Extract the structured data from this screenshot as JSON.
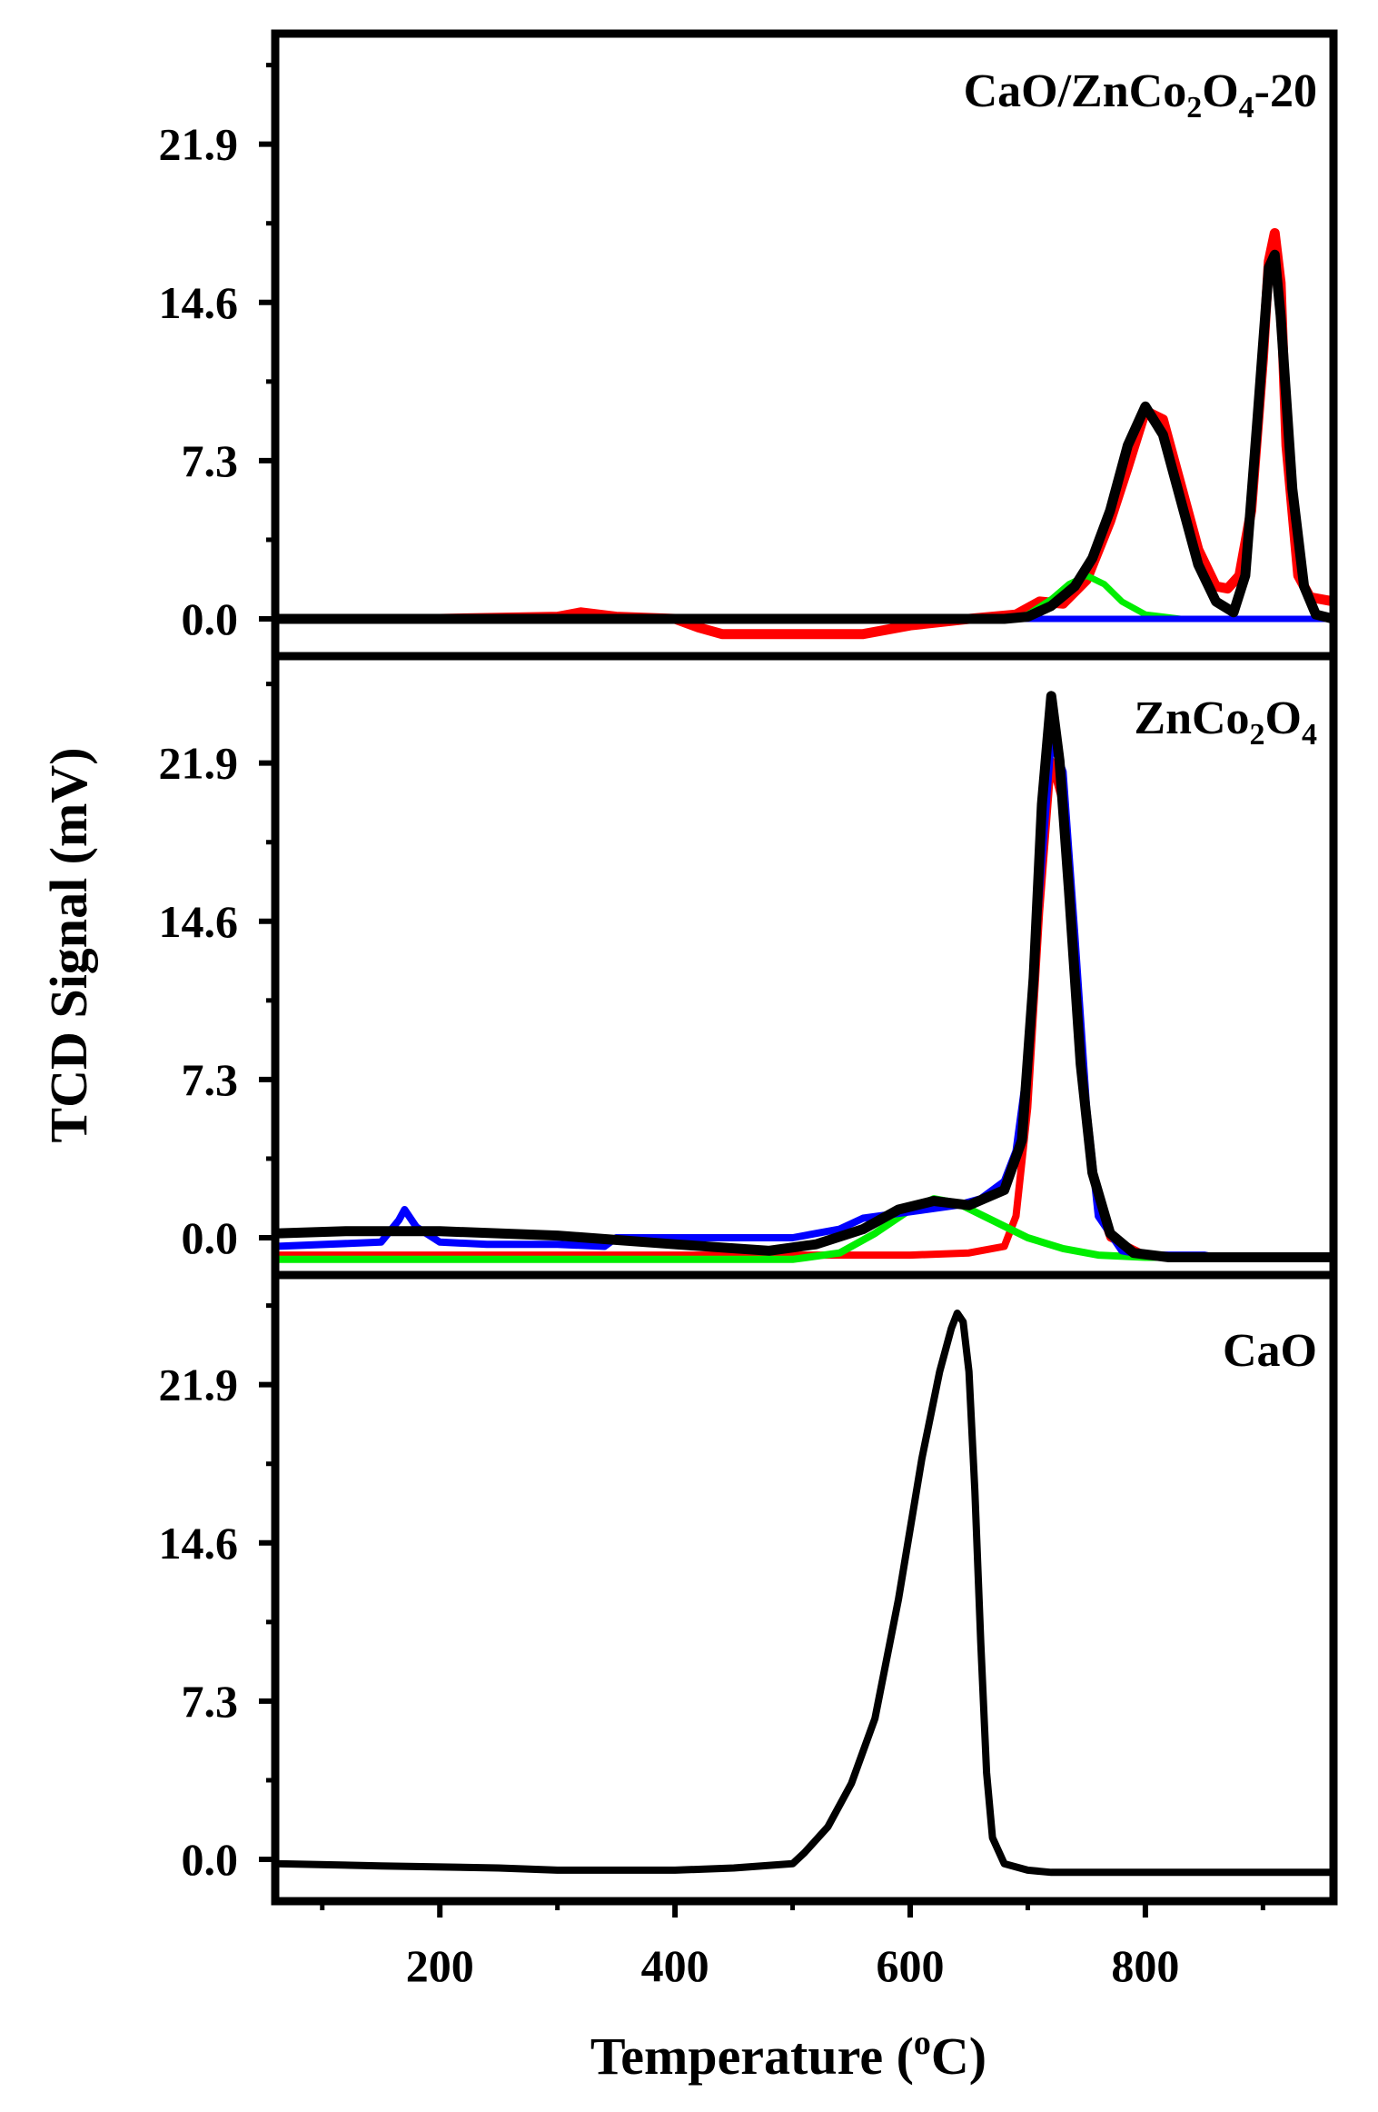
{
  "chart_data": {
    "type": "line",
    "xlabel": "Temperature (oC)",
    "xlabel_parts": {
      "main": "Temperature (",
      "sup": "o",
      "tail": "C)"
    },
    "ylabel": "TCD Signal (mV)",
    "xlim": [
      60,
      960
    ],
    "ylim": [
      -1.5,
      28
    ],
    "xticks": [
      200,
      400,
      600,
      800
    ],
    "xtick_labels": [
      "200",
      "400",
      "600",
      "800"
    ],
    "yticks": [
      0.0,
      7.3,
      14.6,
      21.9
    ],
    "ytick_labels": [
      "0.0",
      "7.3",
      "14.6",
      "21.9"
    ],
    "colors": {
      "experimental": "#ff0000",
      "fit_peak_a": "#00ee00",
      "fit_peak_b": "#0000ff",
      "envelope": "#000000"
    },
    "panels": [
      {
        "title": "CaO/ZnCo2O4-20",
        "title_parts": [
          {
            "t": "CaO/ZnCo"
          },
          {
            "t": "2",
            "sub": true
          },
          {
            "t": "O"
          },
          {
            "t": "4",
            "sub": true
          },
          {
            "t": "-20"
          }
        ],
        "series": [
          {
            "role": "experimental",
            "color": "#ff0000",
            "width": 11,
            "x": [
              60,
              200,
              300,
              320,
              350,
              400,
              420,
              440,
              500,
              560,
              600,
              650,
              690,
              710,
              730,
              750,
              770,
              785,
              800,
              815,
              830,
              845,
              860,
              870,
              880,
              890,
              900,
              905,
              910,
              915,
              920,
              930,
              940,
              950,
              960
            ],
            "y": [
              0,
              0,
              0.1,
              0.3,
              0.1,
              0,
              -0.4,
              -0.7,
              -0.7,
              -0.7,
              -0.3,
              0,
              0.2,
              0.8,
              0.7,
              1.8,
              4.5,
              7.0,
              9.6,
              9.2,
              6.2,
              3.2,
              1.5,
              1.4,
              2.0,
              5.0,
              12.0,
              16.5,
              17.8,
              15.5,
              8.0,
              2.0,
              1.0,
              0.9,
              0.8
            ]
          },
          {
            "role": "fit_peak_a",
            "color": "#00ee00",
            "width": 7,
            "x": [
              60,
              680,
              700,
              720,
              735,
              750,
              765,
              780,
              800,
              830,
              960
            ],
            "y": [
              0,
              0,
              0.2,
              0.9,
              1.6,
              2.0,
              1.6,
              0.8,
              0.2,
              0,
              0
            ]
          },
          {
            "role": "fit_peak_b",
            "color": "#0000ff",
            "width": 7,
            "x": [
              60,
              960
            ],
            "y": [
              0,
              0
            ]
          },
          {
            "role": "envelope",
            "color": "#000000",
            "width": 11,
            "x": [
              60,
              680,
              700,
              720,
              740,
              755,
              770,
              785,
              800,
              815,
              830,
              845,
              860,
              875,
              885,
              895,
              905,
              910,
              915,
              925,
              935,
              945,
              960
            ],
            "y": [
              0,
              0,
              0.1,
              0.6,
              1.5,
              2.8,
              5.0,
              8.0,
              9.8,
              8.5,
              5.5,
              2.5,
              0.8,
              0.3,
              2.0,
              9.0,
              16.2,
              16.8,
              14.0,
              6.0,
              1.5,
              0.2,
              0
            ]
          }
        ]
      },
      {
        "title": "ZnCo2O4",
        "title_parts": [
          {
            "t": "ZnCo"
          },
          {
            "t": "2",
            "sub": true
          },
          {
            "t": "O"
          },
          {
            "t": "4",
            "sub": true
          }
        ],
        "series": [
          {
            "role": "experimental",
            "color": "#ff0000",
            "width": 8,
            "x": [
              60,
              600,
              650,
              680,
              690,
              700,
              710,
              720,
              730,
              740,
              750,
              760,
              770,
              800,
              960
            ],
            "y": [
              -0.8,
              -0.8,
              -0.7,
              -0.4,
              1.0,
              6.0,
              15.0,
              22.0,
              20.0,
              12.0,
              5.0,
              1.5,
              0,
              -0.8,
              -0.9
            ]
          },
          {
            "role": "fit_peak_a",
            "color": "#00ee00",
            "width": 8,
            "x": [
              60,
              500,
              540,
              570,
              600,
              620,
              640,
              670,
              700,
              730,
              760,
              800,
              960
            ],
            "y": [
              -1.0,
              -1.0,
              -0.7,
              0.2,
              1.3,
              1.8,
              1.6,
              0.8,
              0,
              -0.5,
              -0.8,
              -0.9,
              -0.9
            ]
          },
          {
            "role": "fit_peak_b",
            "color": "#0000ff",
            "width": 8,
            "x": [
              60,
              150,
              165,
              170,
              180,
              200,
              240,
              300,
              340,
              350,
              400,
              450,
              500,
              540,
              560,
              600,
              640,
              660,
              680,
              690,
              700,
              710,
              720,
              730,
              740,
              750,
              760,
              780,
              800,
              830,
              850,
              860,
              960
            ],
            "y": [
              -0.4,
              -0.2,
              0.8,
              1.3,
              0.5,
              -0.2,
              -0.3,
              -0.3,
              -0.4,
              0,
              0,
              0,
              0,
              0.4,
              0.9,
              1.2,
              1.5,
              1.8,
              2.6,
              4.0,
              8.0,
              16.0,
              23.0,
              21.5,
              14.0,
              6.0,
              1.0,
              -0.6,
              -0.8,
              -0.8,
              -0.8,
              -0.9,
              -0.9
            ]
          },
          {
            "role": "envelope",
            "color": "#000000",
            "width": 11,
            "x": [
              60,
              120,
              170,
              200,
              300,
              400,
              480,
              520,
              560,
              590,
              620,
              650,
              680,
              695,
              705,
              712,
              720,
              727,
              735,
              745,
              755,
              770,
              790,
              820,
              880,
              960
            ],
            "y": [
              0.2,
              0.3,
              0.3,
              0.3,
              0.1,
              -0.3,
              -0.6,
              -0.3,
              0.4,
              1.3,
              1.7,
              1.5,
              2.2,
              4.5,
              12.0,
              20.0,
              25.0,
              22.0,
              16.0,
              8.0,
              3.0,
              0.2,
              -0.7,
              -0.9,
              -0.9,
              -0.9
            ]
          }
        ]
      },
      {
        "title": "CaO",
        "title_parts": [
          {
            "t": "CaO"
          }
        ],
        "series": [
          {
            "role": "envelope",
            "color": "#000000",
            "width": 8,
            "x": [
              60,
              150,
              250,
              300,
              400,
              450,
              500,
              510,
              530,
              550,
              570,
              590,
              610,
              625,
              635,
              640,
              645,
              650,
              655,
              660,
              665,
              670,
              680,
              700,
              720,
              740,
              770,
              800,
              960
            ],
            "y": [
              -0.2,
              -0.3,
              -0.4,
              -0.5,
              -0.5,
              -0.4,
              -0.2,
              0.3,
              1.5,
              3.5,
              6.5,
              12.0,
              18.5,
              22.5,
              24.5,
              25.2,
              24.8,
              22.5,
              17.0,
              10.0,
              4.0,
              1.0,
              -0.2,
              -0.5,
              -0.6,
              -0.6,
              -0.6,
              -0.6,
              -0.6
            ]
          }
        ]
      }
    ]
  }
}
